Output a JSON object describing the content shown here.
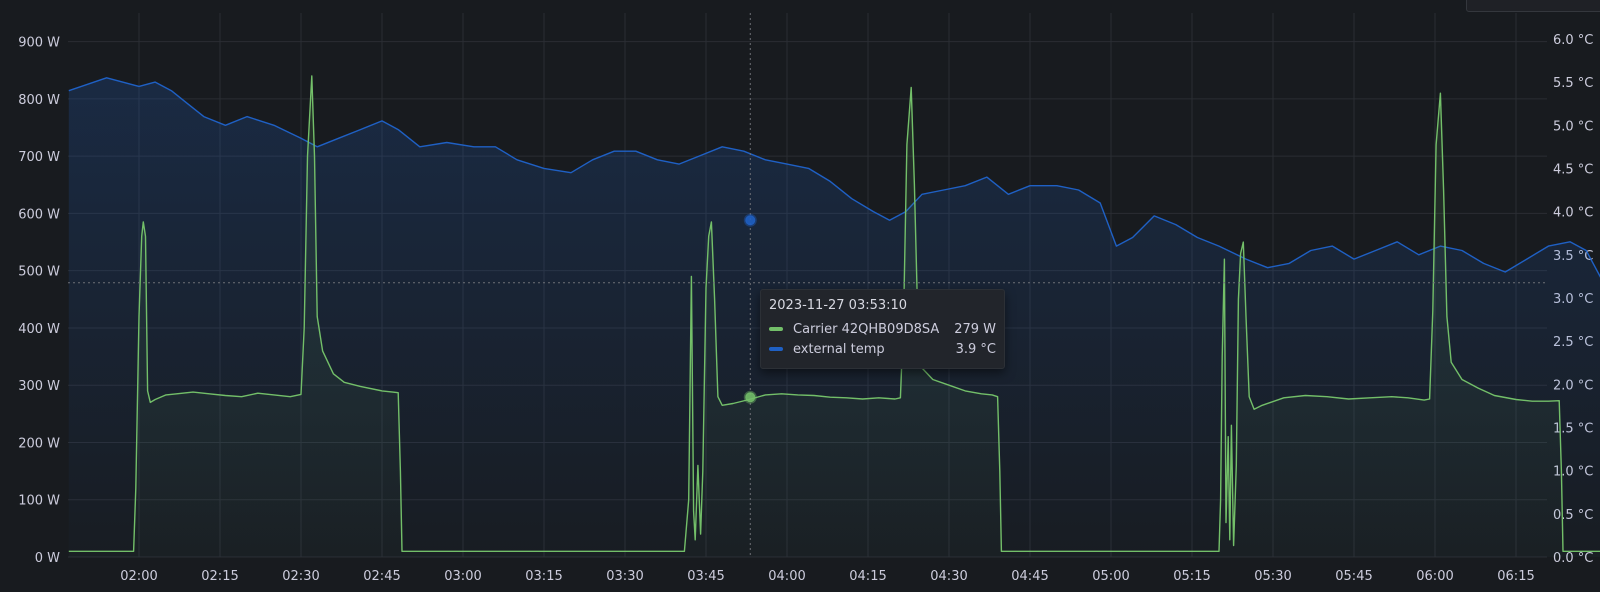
{
  "chart_data": {
    "type": "line",
    "x_axis": {
      "ticks": [
        "02:00",
        "02:15",
        "02:30",
        "02:45",
        "03:00",
        "03:15",
        "03:30",
        "03:45",
        "04:00",
        "04:15",
        "04:30",
        "04:45",
        "05:00",
        "05:15",
        "05:30",
        "05:45",
        "06:00",
        "06:15"
      ]
    },
    "y_left": {
      "unit": "W",
      "ticks": [
        "0 W",
        "100 W",
        "200 W",
        "300 W",
        "400 W",
        "500 W",
        "600 W",
        "700 W",
        "800 W",
        "900 W"
      ],
      "ylim": [
        0,
        900
      ]
    },
    "y_right": {
      "unit": "°C",
      "ticks": [
        "0.0 °C",
        "0.5 °C",
        "1.0 °C",
        "1.5 °C",
        "2.0 °C",
        "2.5 °C",
        "3.0 °C",
        "3.5 °C",
        "4.0 °C",
        "4.5 °C",
        "5.0 °C",
        "5.5 °C",
        "6.0 °C"
      ],
      "ylim": [
        0,
        6.0
      ]
    },
    "series": [
      {
        "name": "Carrier 42QHB09D8SA",
        "color": "#73bf69",
        "axis": "left",
        "points": [
          [
            -13,
            10
          ],
          [
            -1,
            10
          ],
          [
            -0.6,
            120
          ],
          [
            0,
            420
          ],
          [
            0.5,
            560
          ],
          [
            0.8,
            585
          ],
          [
            1.2,
            560
          ],
          [
            1.6,
            290
          ],
          [
            2.1,
            270
          ],
          [
            3,
            275
          ],
          [
            5,
            283
          ],
          [
            7,
            285
          ],
          [
            10,
            288
          ],
          [
            13,
            285
          ],
          [
            16,
            282
          ],
          [
            19,
            280
          ],
          [
            22,
            286
          ],
          [
            25,
            283
          ],
          [
            28,
            280
          ],
          [
            30,
            284
          ],
          [
            30.6,
            400
          ],
          [
            31.2,
            700
          ],
          [
            32,
            840
          ],
          [
            32.5,
            700
          ],
          [
            33,
            420
          ],
          [
            34,
            360
          ],
          [
            36,
            320
          ],
          [
            38,
            305
          ],
          [
            41,
            298
          ],
          [
            45,
            290
          ],
          [
            47,
            288
          ],
          [
            48,
            287
          ],
          [
            48.4,
            150
          ],
          [
            48.7,
            10
          ],
          [
            101,
            10
          ],
          [
            101.8,
            100
          ],
          [
            102.3,
            490
          ],
          [
            102.7,
            80
          ],
          [
            103,
            30
          ],
          [
            103.5,
            160
          ],
          [
            104,
            40
          ],
          [
            104.4,
            150
          ],
          [
            105,
            470
          ],
          [
            105.5,
            560
          ],
          [
            106,
            585
          ],
          [
            106.6,
            450
          ],
          [
            107.2,
            280
          ],
          [
            108,
            265
          ],
          [
            110,
            268
          ],
          [
            113,
            275
          ],
          [
            116,
            283
          ],
          [
            119,
            285
          ],
          [
            122,
            283
          ],
          [
            125,
            282
          ],
          [
            128,
            279
          ],
          [
            131,
            278
          ],
          [
            134,
            276
          ],
          [
            137,
            278
          ],
          [
            140,
            276
          ],
          [
            141,
            278
          ],
          [
            141.6,
            420
          ],
          [
            142.2,
            720
          ],
          [
            143,
            820
          ],
          [
            143.6,
            650
          ],
          [
            144.2,
            420
          ],
          [
            145,
            330
          ],
          [
            147,
            310
          ],
          [
            150,
            300
          ],
          [
            153,
            290
          ],
          [
            156,
            285
          ],
          [
            158,
            283
          ],
          [
            159,
            280
          ],
          [
            159.4,
            150
          ],
          [
            159.7,
            10
          ],
          [
            200,
            10
          ],
          [
            200.3,
            100
          ],
          [
            200.6,
            350
          ],
          [
            201,
            520
          ],
          [
            201.3,
            60
          ],
          [
            201.7,
            210
          ],
          [
            202,
            30
          ],
          [
            202.3,
            230
          ],
          [
            202.7,
            20
          ],
          [
            203.2,
            160
          ],
          [
            203.6,
            450
          ],
          [
            204,
            530
          ],
          [
            204.5,
            550
          ],
          [
            205,
            420
          ],
          [
            205.6,
            280
          ],
          [
            206.5,
            258
          ],
          [
            208,
            265
          ],
          [
            212,
            278
          ],
          [
            216,
            282
          ],
          [
            220,
            280
          ],
          [
            224,
            276
          ],
          [
            228,
            278
          ],
          [
            232,
            280
          ],
          [
            235,
            278
          ],
          [
            238,
            274
          ],
          [
            239,
            276
          ],
          [
            239.6,
            430
          ],
          [
            240.2,
            720
          ],
          [
            241,
            810
          ],
          [
            241.6,
            640
          ],
          [
            242.2,
            420
          ],
          [
            243,
            340
          ],
          [
            245,
            310
          ],
          [
            248,
            295
          ],
          [
            251,
            282
          ],
          [
            255,
            275
          ],
          [
            258,
            272
          ],
          [
            261,
            272
          ],
          [
            263,
            273
          ],
          [
            263.4,
            150
          ],
          [
            263.7,
            10
          ],
          [
            278,
            10
          ]
        ]
      },
      {
        "name": "external temp",
        "color": "#1f60c4",
        "axis": "right",
        "points": [
          [
            -13,
            5.4
          ],
          [
            -6,
            5.55
          ],
          [
            0,
            5.45
          ],
          [
            3,
            5.5
          ],
          [
            6,
            5.4
          ],
          [
            9,
            5.25
          ],
          [
            12,
            5.1
          ],
          [
            16,
            5.0
          ],
          [
            20,
            5.1
          ],
          [
            25,
            5.0
          ],
          [
            30,
            4.85
          ],
          [
            33,
            4.75
          ],
          [
            37,
            4.85
          ],
          [
            41,
            4.95
          ],
          [
            45,
            5.05
          ],
          [
            48,
            4.95
          ],
          [
            52,
            4.75
          ],
          [
            57,
            4.8
          ],
          [
            62,
            4.75
          ],
          [
            66,
            4.75
          ],
          [
            70,
            4.6
          ],
          [
            75,
            4.5
          ],
          [
            80,
            4.45
          ],
          [
            84,
            4.6
          ],
          [
            88,
            4.7
          ],
          [
            92,
            4.7
          ],
          [
            96,
            4.6
          ],
          [
            100,
            4.55
          ],
          [
            104,
            4.65
          ],
          [
            108,
            4.75
          ],
          [
            112,
            4.7
          ],
          [
            116,
            4.6
          ],
          [
            120,
            4.55
          ],
          [
            124,
            4.5
          ],
          [
            128,
            4.35
          ],
          [
            132,
            4.15
          ],
          [
            136,
            4.0
          ],
          [
            139,
            3.9
          ],
          [
            142,
            4.0
          ],
          [
            145,
            4.2
          ],
          [
            149,
            4.25
          ],
          [
            153,
            4.3
          ],
          [
            157,
            4.4
          ],
          [
            161,
            4.2
          ],
          [
            165,
            4.3
          ],
          [
            170,
            4.3
          ],
          [
            174,
            4.25
          ],
          [
            178,
            4.1
          ],
          [
            181,
            3.6
          ],
          [
            184,
            3.7
          ],
          [
            188,
            3.95
          ],
          [
            192,
            3.85
          ],
          [
            196,
            3.7
          ],
          [
            200,
            3.6
          ],
          [
            205,
            3.45
          ],
          [
            209,
            3.35
          ],
          [
            213,
            3.4
          ],
          [
            217,
            3.55
          ],
          [
            221,
            3.6
          ],
          [
            225,
            3.45
          ],
          [
            229,
            3.55
          ],
          [
            233,
            3.65
          ],
          [
            237,
            3.5
          ],
          [
            241,
            3.6
          ],
          [
            245,
            3.55
          ],
          [
            249,
            3.4
          ],
          [
            253,
            3.3
          ],
          [
            257,
            3.45
          ],
          [
            261,
            3.6
          ],
          [
            265,
            3.65
          ],
          [
            268,
            3.55
          ],
          [
            271,
            3.2
          ],
          [
            274,
            3.0
          ],
          [
            278,
            3.05
          ]
        ]
      }
    ],
    "crosshair": {
      "time": 113.2,
      "value_w": 479
    },
    "tooltip": {
      "time": "2023-11-27 03:53:10",
      "rows": [
        {
          "name": "Carrier 42QHB09D8SA",
          "value": "279 W",
          "color": "#73bf69"
        },
        {
          "name": "external temp",
          "value": "3.9 °C",
          "color": "#1f60c4"
        }
      ]
    }
  }
}
